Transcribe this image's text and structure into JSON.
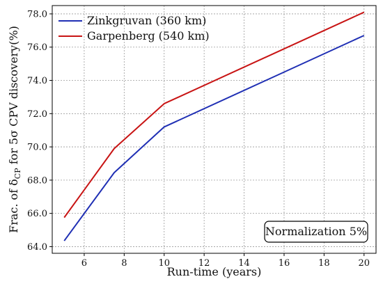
{
  "chart_data": {
    "type": "line",
    "title": "",
    "xlabel": "Run-time (years)",
    "ylabel": {
      "prefix": "Frac. of δ",
      "subscript": "CP",
      "suffix": " for 5σ CPV discovery(%)"
    },
    "xlim": [
      4.4,
      20.6
    ],
    "ylim": [
      63.6,
      78.5
    ],
    "xticks": [
      6,
      8,
      10,
      12,
      14,
      16,
      18,
      20
    ],
    "xtick_labels": [
      "6",
      "8",
      "10",
      "12",
      "14",
      "16",
      "18",
      "20"
    ],
    "yticks": [
      64,
      66,
      68,
      70,
      72,
      74,
      76,
      78
    ],
    "ytick_labels": [
      "64.0",
      "66.0",
      "68.0",
      "70.0",
      "72.0",
      "74.0",
      "76.0",
      "78.0"
    ],
    "grid": true,
    "legend_position": "top-left",
    "x": [
      5,
      7.5,
      10,
      20
    ],
    "series": [
      {
        "name": "Zinkgruvan (360 km)",
        "color": "#1f2fb4",
        "values": [
          64.35,
          68.45,
          71.2,
          76.7
        ]
      },
      {
        "name": "Garpenberg (540 km)",
        "color": "#c81414",
        "values": [
          65.75,
          69.9,
          72.6,
          78.1
        ]
      }
    ],
    "annotation": "Normalization 5%"
  }
}
